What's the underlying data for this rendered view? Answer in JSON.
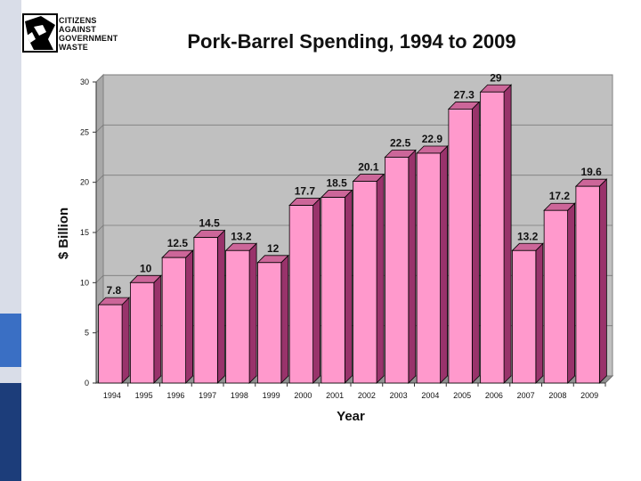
{
  "logo": {
    "lines": [
      "CITIZENS",
      "AGAINST",
      "GOVERNMENT",
      "WASTE"
    ]
  },
  "chart_data": {
    "type": "bar",
    "title": "Pork-Barrel Spending, 1994 to 2009",
    "xlabel": "Year",
    "ylabel": "$ Billion",
    "ylim": [
      0,
      30
    ],
    "yticks": [
      0,
      5,
      10,
      15,
      20,
      25,
      30
    ],
    "grid": true,
    "categories": [
      "1994",
      "1995",
      "1996",
      "1997",
      "1998",
      "1999",
      "2000",
      "2001",
      "2002",
      "2003",
      "2004",
      "2005",
      "2006",
      "2007",
      "2008",
      "2009"
    ],
    "values": [
      7.8,
      10,
      12.5,
      14.5,
      13.2,
      12,
      17.7,
      18.5,
      20.1,
      22.5,
      22.9,
      27.3,
      29,
      13.2,
      17.2,
      19.6
    ],
    "data_labels": [
      "7.8",
      "10",
      "12.5",
      "14.5",
      "13.2",
      "12",
      "17.7",
      "18.5",
      "20.1",
      "22.5",
      "22.9",
      "27.3",
      "29",
      "13.2",
      "17.2",
      "19.6"
    ],
    "colors": {
      "bar_front": "#ff99cc",
      "bar_side": "#99336b",
      "bar_top": "#cc6699",
      "plot_bg": "#c0c0c0",
      "floor": "#909090"
    }
  }
}
